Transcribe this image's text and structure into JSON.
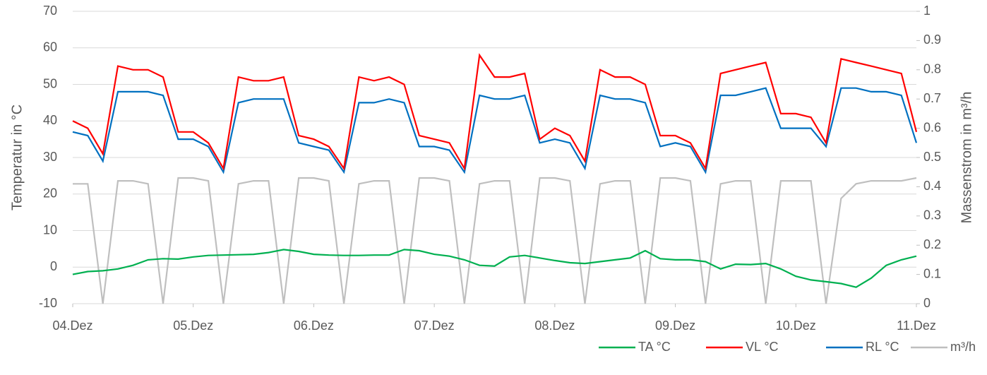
{
  "chart_data": {
    "type": "line",
    "x": [
      0,
      0.125,
      0.25,
      0.375,
      0.5,
      0.625,
      0.75,
      0.875,
      1,
      1.125,
      1.25,
      1.375,
      1.5,
      1.625,
      1.75,
      1.875,
      2,
      2.125,
      2.25,
      2.375,
      2.5,
      2.625,
      2.75,
      2.875,
      3,
      3.125,
      3.25,
      3.375,
      3.5,
      3.625,
      3.75,
      3.875,
      4,
      4.125,
      4.25,
      4.375,
      4.5,
      4.625,
      4.75,
      4.875,
      5,
      5.125,
      5.25,
      5.375,
      5.5,
      5.625,
      5.75,
      5.875,
      6,
      6.125,
      6.25,
      6.375,
      6.5,
      6.625,
      6.75,
      6.875,
      7
    ],
    "xlim": [
      0,
      7
    ],
    "xticks": [
      {
        "value": 0,
        "label": "04.Dez"
      },
      {
        "value": 1,
        "label": "05.Dez"
      },
      {
        "value": 2,
        "label": "06.Dez"
      },
      {
        "value": 3,
        "label": "07.Dez"
      },
      {
        "value": 4,
        "label": "08.Dez"
      },
      {
        "value": 5,
        "label": "09.Dez"
      },
      {
        "value": 6,
        "label": "10.Dez"
      },
      {
        "value": 7,
        "label": "11.Dez"
      }
    ],
    "ylim": [
      -10,
      70
    ],
    "yticks": [
      -10,
      0,
      10,
      20,
      30,
      40,
      50,
      60,
      70
    ],
    "y2lim": [
      0,
      1
    ],
    "y2ticks": [
      0,
      0.1,
      0.2,
      0.3,
      0.4,
      0.5,
      0.6,
      0.7,
      0.8,
      0.9,
      1
    ],
    "ylabel": "Temperatur in °C",
    "y2label": "Massenstrom in m³/h",
    "grid": true,
    "legend": "bottom-right",
    "series": [
      {
        "name": "TA °C",
        "color": "#00b050",
        "values": [
          -2,
          -1.2,
          -1,
          -0.5,
          0.5,
          2,
          2.3,
          2.2,
          2.8,
          3.2,
          3.3,
          3.4,
          3.5,
          4,
          4.8,
          4.3,
          3.5,
          3.3,
          3.2,
          3.2,
          3.3,
          3.3,
          4.8,
          4.5,
          3.5,
          3,
          2,
          0.5,
          0.3,
          2.8,
          3.2,
          2.5,
          1.8,
          1.2,
          1,
          1.5,
          2,
          2.5,
          4.5,
          2.3,
          2,
          2,
          1.5,
          -0.5,
          0.8,
          0.7,
          1,
          -0.5,
          -2.5,
          -3.5,
          -4,
          -4.5,
          -5.5,
          -3,
          0.5,
          2,
          3
        ]
      },
      {
        "name": "VL °C",
        "color": "#ff0000",
        "values": [
          40,
          38,
          31,
          55,
          54,
          54,
          52,
          37,
          37,
          34,
          27,
          52,
          51,
          51,
          52,
          36,
          35,
          33,
          27,
          52,
          51,
          52,
          50,
          36,
          35,
          34,
          27,
          58,
          52,
          52,
          53,
          35,
          38,
          36,
          29,
          54,
          52,
          52,
          50,
          36,
          36,
          34,
          27,
          53,
          54,
          55,
          56,
          42,
          42,
          41,
          34,
          57,
          56,
          55,
          54,
          53,
          37
        ]
      },
      {
        "name": "RL °C",
        "color": "#0070c0",
        "values": [
          37,
          36,
          29,
          48,
          48,
          48,
          47,
          35,
          35,
          33,
          26,
          45,
          46,
          46,
          46,
          34,
          33,
          32,
          26,
          45,
          45,
          46,
          45,
          33,
          33,
          32,
          26,
          47,
          46,
          46,
          47,
          34,
          35,
          34,
          27,
          47,
          46,
          46,
          45,
          33,
          34,
          33,
          26,
          47,
          47,
          48,
          49,
          38,
          38,
          38,
          33,
          49,
          49,
          48,
          48,
          47,
          34
        ]
      },
      {
        "name": "m³/h",
        "color": "#bfbfbf",
        "axis": "y2",
        "values": [
          0.41,
          0.41,
          0,
          0.42,
          0.42,
          0.41,
          0,
          0.43,
          0.43,
          0.42,
          0,
          0.41,
          0.42,
          0.42,
          0,
          0.43,
          0.43,
          0.42,
          0,
          0.41,
          0.42,
          0.42,
          0,
          0.43,
          0.43,
          0.42,
          0,
          0.41,
          0.42,
          0.42,
          0,
          0.43,
          0.43,
          0.42,
          0,
          0.41,
          0.42,
          0.42,
          0,
          0.43,
          0.43,
          0.42,
          0,
          0.41,
          0.42,
          0.42,
          0,
          0.42,
          0.42,
          0.42,
          0,
          0.36,
          0.41,
          0.42,
          0.42,
          0.42,
          0.43
        ]
      }
    ]
  }
}
